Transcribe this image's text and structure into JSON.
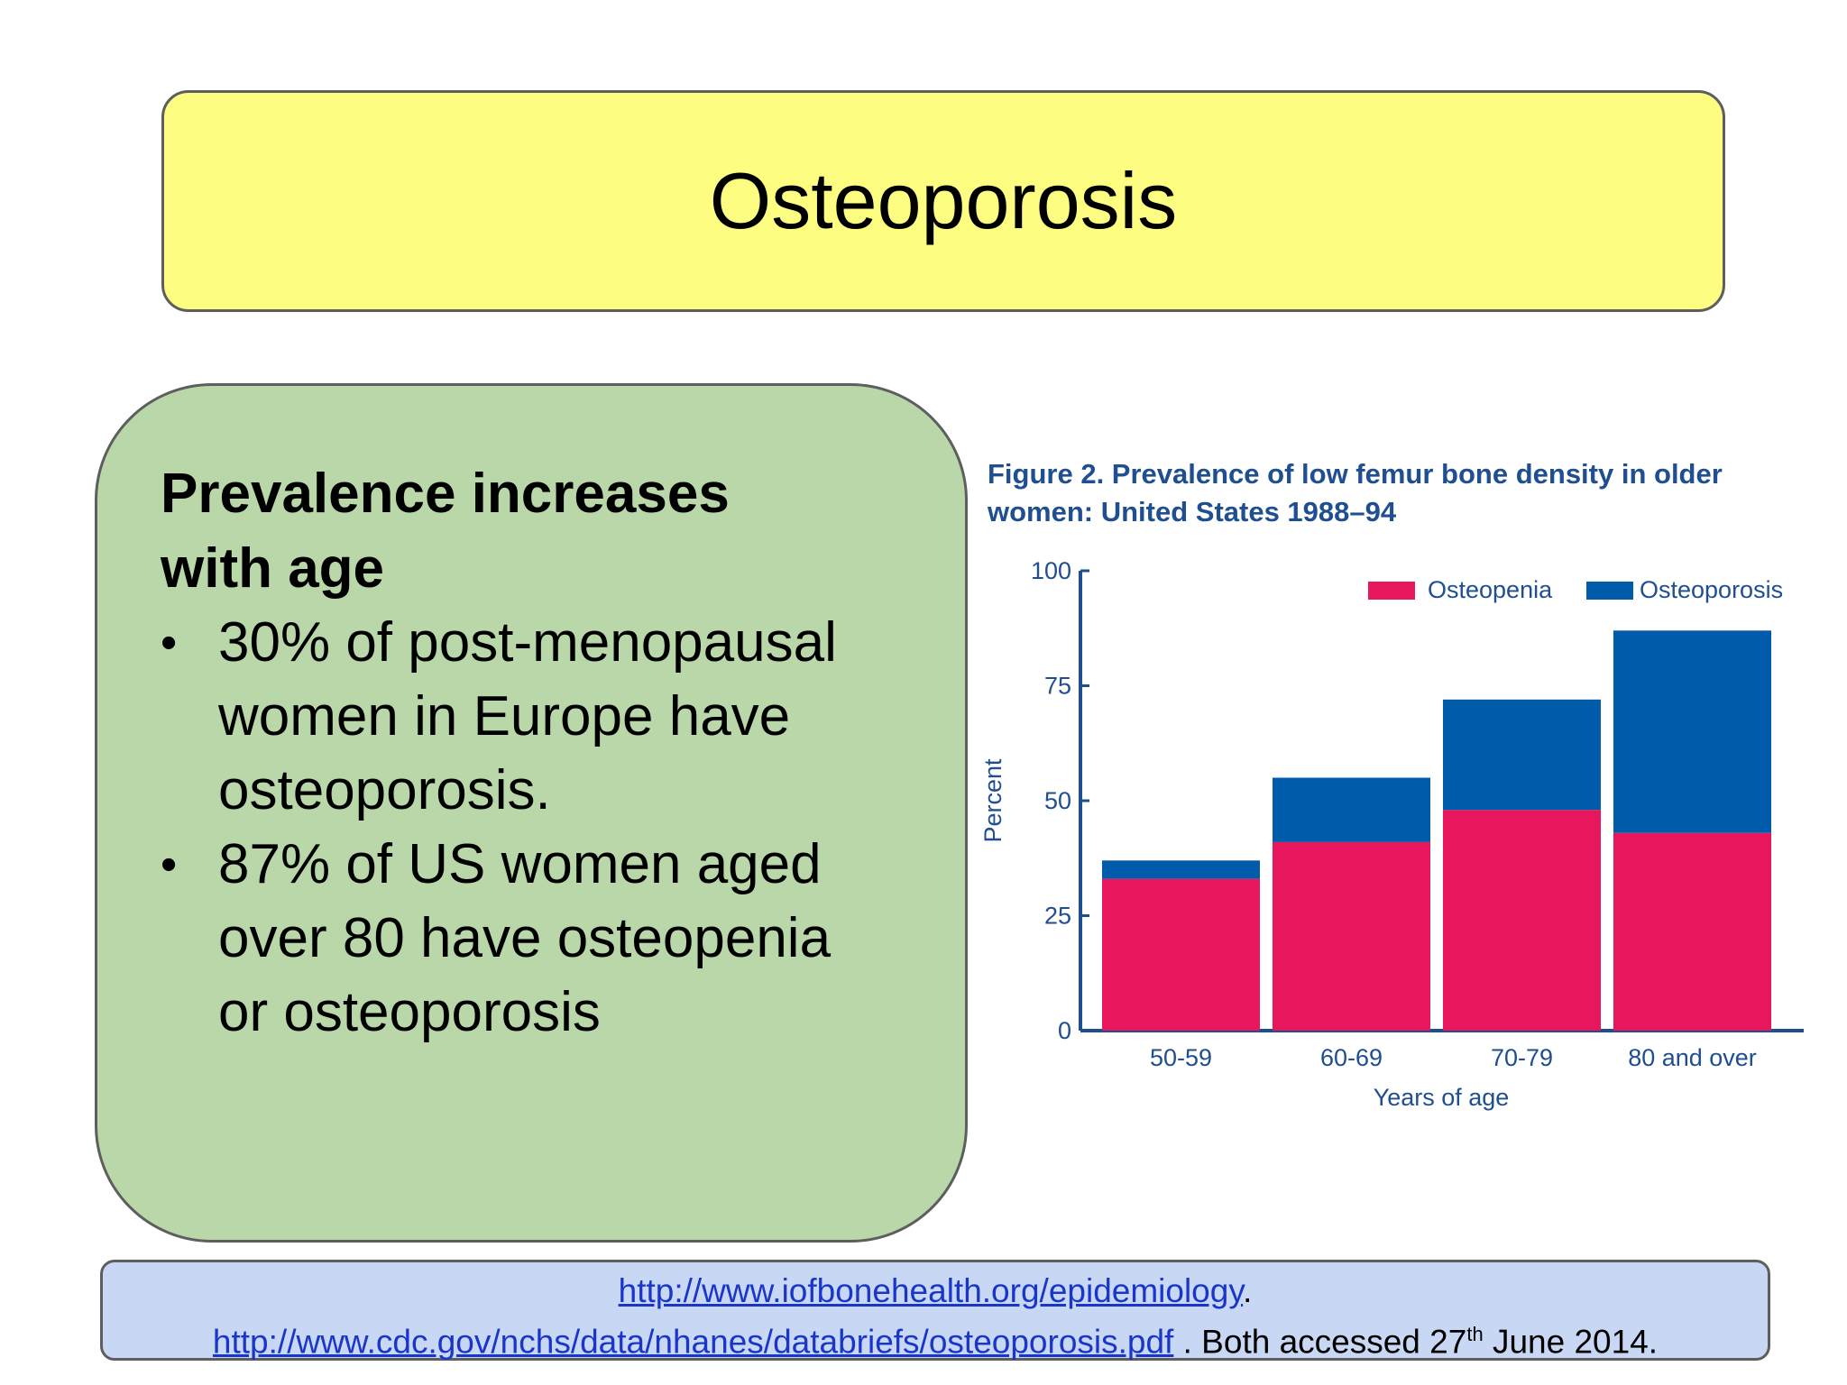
{
  "slide": {
    "title": "Osteoporosis",
    "content": {
      "heading_line1": "Prevalence increases",
      "heading_line2": "with age",
      "bullets": [
        {
          "line1": "30% of post-menopausal",
          "line2": "women in Europe have",
          "line3": "osteoporosis."
        },
        {
          "line1": "87% of US women aged",
          "line2": "over 80 have osteopenia",
          "line3": "or osteoporosis"
        }
      ],
      "bullet_glyph": "•"
    },
    "references": {
      "link1": "http://www.iofbonehealth.org/epidemiology",
      "link1_suffix": ".",
      "link2": "http://www.cdc.gov/nchs/data/nhanes/databriefs/osteoporosis.pdf",
      "text_before_sup": " .  Both accessed 27",
      "sup": "th",
      "text_after_sup": " June 2014."
    }
  },
  "chart_data": {
    "type": "bar",
    "stacked": true,
    "title_line1": "Figure 2. Prevalence of low femur bone density in older",
    "title_line2": "women: United States 1988–94",
    "xlabel": "Years of age",
    "ylabel": "Percent",
    "categories": [
      "50-59",
      "60-69",
      "70-79",
      "80 and over"
    ],
    "series": [
      {
        "name": "Osteopenia",
        "values": [
          33,
          41,
          48,
          43
        ],
        "color": "#e8175d"
      },
      {
        "name": "Osteoporosis",
        "values": [
          4,
          14,
          24,
          44
        ],
        "color": "#005cab"
      }
    ],
    "ylim": [
      0,
      100
    ],
    "yticks": [
      "0",
      "25",
      "50",
      "75",
      "100"
    ],
    "legend_position": "top-right",
    "grid": false,
    "axis_color": "#1f4e91"
  }
}
